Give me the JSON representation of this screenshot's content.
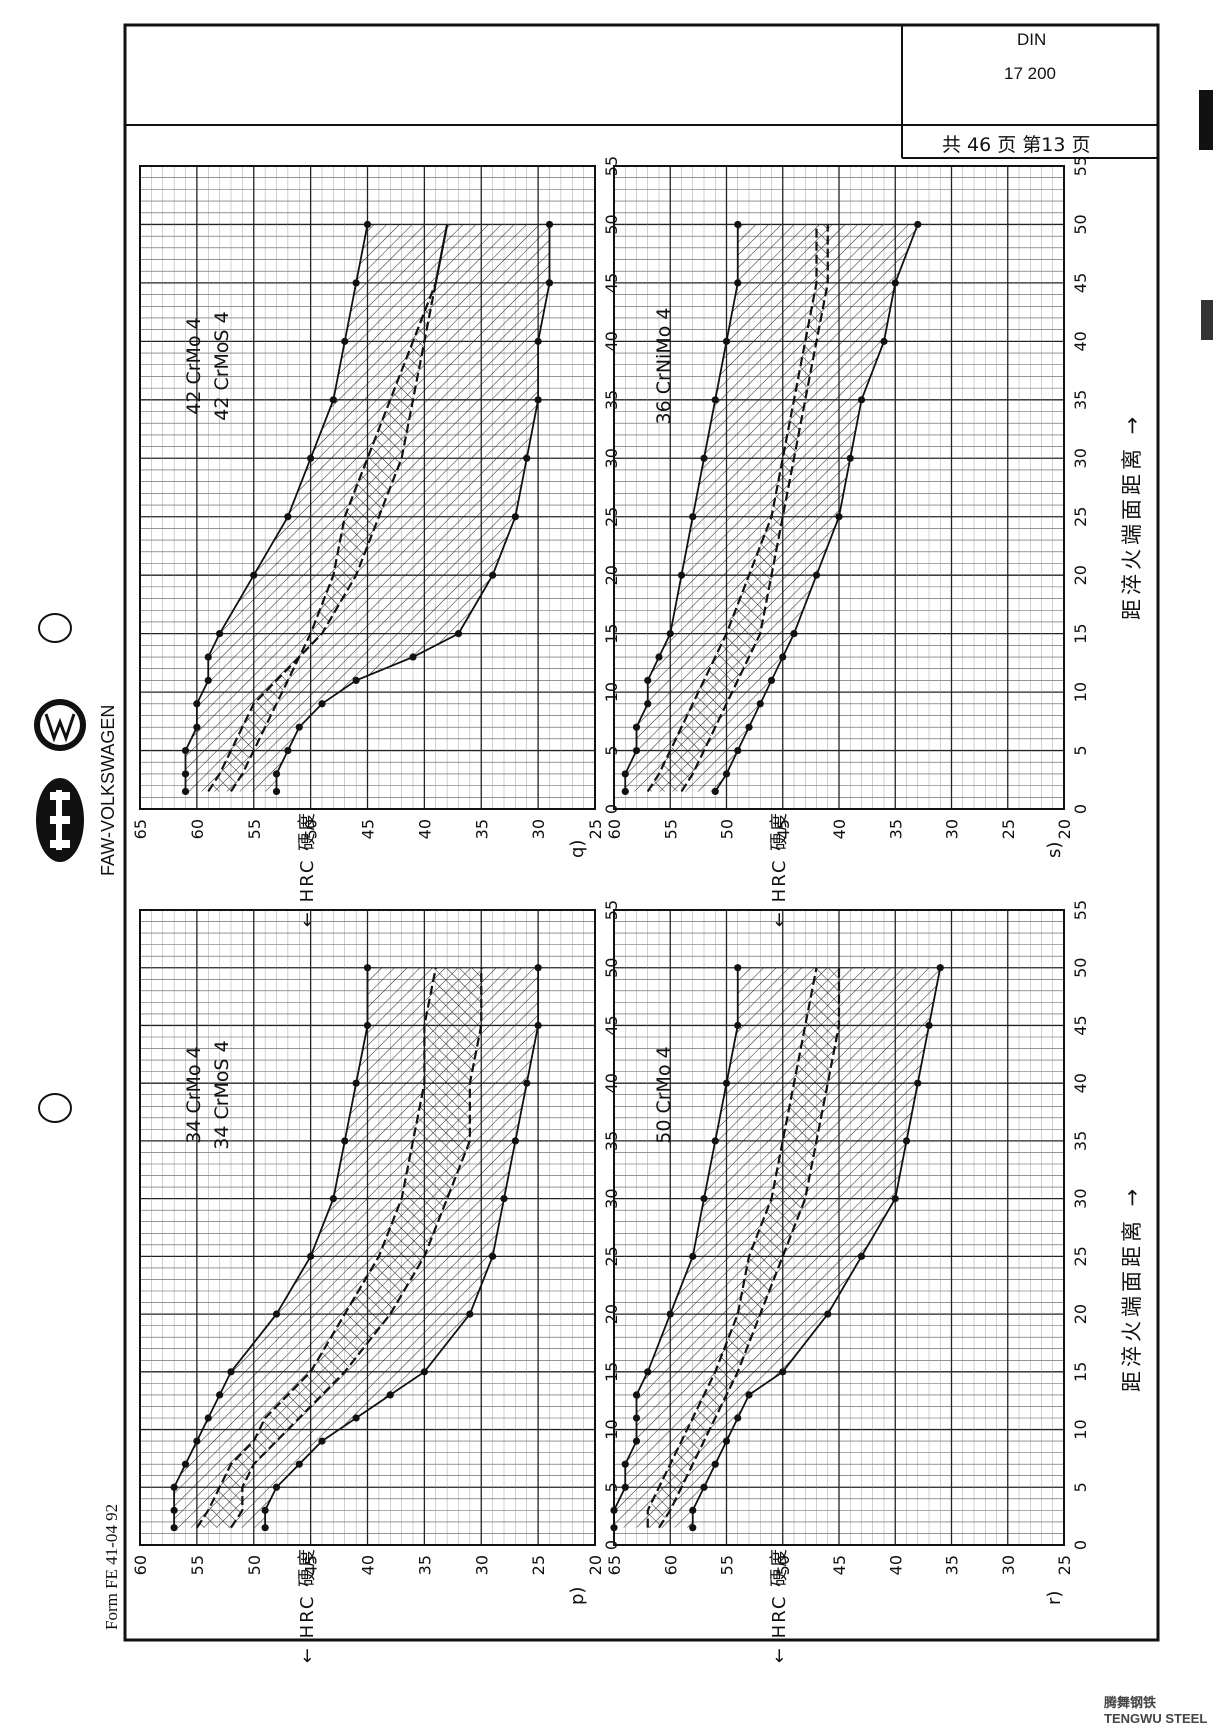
{
  "header": {
    "standard": "DIN",
    "number": "17 200",
    "page_info": "共 46  页  第13  页"
  },
  "brand": {
    "name": "FAW-VOLKSWAGEN"
  },
  "form": "Form FE 41-04 92",
  "axis_text": {
    "x_label": "距淬火端面距离 →",
    "y_label": "← HRC  硬度"
  },
  "watermark": "腾舞钢铁 TENGWU STEEL",
  "colors": {
    "ink": "#1a1a1a",
    "paper": "#ffffff",
    "grid": "#333333"
  },
  "chart_data": [
    {
      "id": "q",
      "panel_label": "q)",
      "type": "line",
      "grades": [
        "42 CrMo 4",
        "42 CrMoS 4"
      ],
      "xlabel": "距淬火端面距离",
      "ylabel": "HRC 硬度",
      "xlim": [
        0,
        55
      ],
      "ylim": [
        25,
        65
      ],
      "x_ticks": [
        0,
        5,
        10,
        15,
        20,
        25,
        30,
        35,
        40,
        45,
        50,
        55
      ],
      "y_ticks": [
        25,
        30,
        35,
        40,
        45,
        50,
        55,
        60,
        65
      ],
      "series": [
        {
          "x": [
            1.5,
            3,
            5,
            7,
            9,
            11,
            13,
            15,
            20,
            25,
            30,
            35,
            40,
            45,
            50
          ],
          "values": [
            61,
            61,
            61,
            60,
            60,
            59,
            59,
            58,
            55,
            52,
            50,
            48,
            47,
            46,
            45
          ]
        },
        {
          "x": [
            1.5,
            3,
            5,
            7,
            9,
            11,
            13,
            15,
            20,
            25,
            30,
            35,
            40,
            45,
            50
          ],
          "values": [
            59,
            58,
            57,
            56,
            55,
            53,
            51,
            49,
            46,
            44,
            42,
            41,
            40,
            39,
            38
          ]
        },
        {
          "x": [
            1.5,
            3,
            5,
            7,
            9,
            11,
            13,
            15,
            20,
            25,
            30,
            35,
            40,
            45,
            50
          ],
          "values": [
            57,
            56,
            55,
            54,
            53,
            52,
            51,
            50,
            48,
            47,
            45,
            43,
            41,
            39,
            38
          ]
        },
        {
          "x": [
            1.5,
            3,
            5,
            7,
            9,
            11,
            13,
            15,
            20,
            25,
            30,
            35,
            40,
            45,
            50
          ],
          "values": [
            53,
            53,
            52,
            51,
            49,
            46,
            41,
            37,
            34,
            32,
            31,
            30,
            30,
            29,
            29
          ]
        }
      ]
    },
    {
      "id": "s",
      "panel_label": "s)",
      "type": "line",
      "grades": [
        "36 CrNiMo 4"
      ],
      "xlabel": "距淬火端面距离",
      "ylabel": "HRC 硬度",
      "xlim": [
        0,
        55
      ],
      "ylim": [
        20,
        60
      ],
      "x_ticks": [
        0,
        5,
        10,
        15,
        20,
        25,
        30,
        35,
        40,
        45,
        50,
        55
      ],
      "y_ticks": [
        20,
        25,
        30,
        35,
        40,
        45,
        50,
        55,
        60
      ],
      "series": [
        {
          "x": [
            1.5,
            3,
            5,
            7,
            9,
            11,
            13,
            15,
            20,
            25,
            30,
            35,
            40,
            45,
            50
          ],
          "values": [
            59,
            59,
            58,
            58,
            57,
            57,
            56,
            55,
            54,
            53,
            52,
            51,
            50,
            49,
            49
          ]
        },
        {
          "x": [
            1.5,
            3,
            5,
            7,
            9,
            11,
            13,
            15,
            20,
            25,
            30,
            35,
            40,
            45,
            50
          ],
          "values": [
            57,
            56,
            55,
            54,
            53,
            52,
            51,
            50,
            48,
            46,
            45,
            44,
            43,
            42,
            42
          ]
        },
        {
          "x": [
            1.5,
            3,
            5,
            7,
            9,
            11,
            13,
            15,
            20,
            25,
            30,
            35,
            40,
            45,
            50
          ],
          "values": [
            54,
            53,
            52,
            51,
            50,
            49,
            48,
            47,
            46,
            45,
            44,
            43,
            42,
            41,
            41
          ]
        },
        {
          "x": [
            1.5,
            3,
            5,
            7,
            9,
            11,
            13,
            15,
            20,
            25,
            30,
            35,
            40,
            45,
            50
          ],
          "values": [
            51,
            50,
            49,
            48,
            47,
            46,
            45,
            44,
            42,
            40,
            39,
            38,
            36,
            35,
            33
          ]
        }
      ]
    },
    {
      "id": "p",
      "panel_label": "p)",
      "type": "line",
      "grades": [
        "34 CrMo 4",
        "34 CrMoS 4"
      ],
      "xlabel": "距淬火端面距离",
      "ylabel": "HRC 硬度",
      "xlim": [
        0,
        55
      ],
      "ylim": [
        20,
        60
      ],
      "x_ticks": [
        0,
        5,
        10,
        15,
        20,
        25,
        30,
        35,
        40,
        45,
        50,
        55
      ],
      "y_ticks": [
        20,
        25,
        30,
        35,
        40,
        45,
        50,
        55,
        60
      ],
      "series": [
        {
          "x": [
            1.5,
            3,
            5,
            7,
            9,
            11,
            13,
            15,
            20,
            25,
            30,
            35,
            40,
            45,
            50
          ],
          "values": [
            57,
            57,
            57,
            56,
            55,
            54,
            53,
            52,
            48,
            45,
            43,
            42,
            41,
            40,
            40
          ]
        },
        {
          "x": [
            1.5,
            3,
            5,
            7,
            9,
            11,
            13,
            15,
            20,
            25,
            30,
            35,
            40,
            45,
            50
          ],
          "values": [
            55,
            54,
            53,
            52,
            50,
            49,
            47,
            45,
            42,
            39,
            37,
            36,
            35,
            35,
            34
          ]
        },
        {
          "x": [
            1.5,
            3,
            5,
            7,
            9,
            11,
            13,
            15,
            20,
            25,
            30,
            35,
            40,
            45,
            50
          ],
          "values": [
            52,
            51,
            51,
            50,
            48,
            46,
            44,
            42,
            38,
            35,
            33,
            31,
            31,
            30,
            30
          ]
        },
        {
          "x": [
            1.5,
            3,
            5,
            7,
            9,
            11,
            13,
            15,
            20,
            25,
            30,
            35,
            40,
            45,
            50
          ],
          "values": [
            49,
            49,
            48,
            46,
            44,
            41,
            38,
            35,
            31,
            29,
            28,
            27,
            26,
            25,
            25
          ]
        }
      ]
    },
    {
      "id": "r",
      "panel_label": "r)",
      "type": "line",
      "grades": [
        "50 CrMo 4"
      ],
      "xlabel": "距淬火端面距离",
      "ylabel": "HRC 硬度",
      "xlim": [
        0,
        55
      ],
      "ylim": [
        25,
        65
      ],
      "x_ticks": [
        0,
        5,
        10,
        15,
        20,
        25,
        30,
        35,
        40,
        45,
        50,
        55
      ],
      "y_ticks": [
        25,
        30,
        35,
        40,
        45,
        50,
        55,
        60,
        65
      ],
      "series": [
        {
          "x": [
            1.5,
            3,
            5,
            7,
            9,
            11,
            13,
            15,
            20,
            25,
            30,
            35,
            40,
            45,
            50
          ],
          "values": [
            65,
            65,
            64,
            64,
            63,
            63,
            63,
            62,
            60,
            58,
            57,
            56,
            55,
            54,
            54
          ]
        },
        {
          "x": [
            1.5,
            3,
            5,
            7,
            9,
            11,
            13,
            15,
            20,
            25,
            30,
            35,
            40,
            45,
            50
          ],
          "values": [
            62,
            62,
            61,
            60,
            59,
            58,
            57,
            56,
            54,
            53,
            51,
            50,
            49,
            48,
            47
          ]
        },
        {
          "x": [
            1.5,
            3,
            5,
            7,
            9,
            11,
            13,
            15,
            20,
            25,
            30,
            35,
            40,
            45,
            50
          ],
          "values": [
            61,
            60,
            59,
            58,
            57,
            56,
            55,
            54,
            52,
            50,
            48,
            47,
            46,
            45,
            45
          ]
        },
        {
          "x": [
            1.5,
            3,
            5,
            7,
            9,
            11,
            13,
            15,
            20,
            25,
            30,
            35,
            40,
            45,
            50
          ],
          "values": [
            58,
            58,
            57,
            56,
            55,
            54,
            53,
            50,
            46,
            43,
            40,
            39,
            38,
            37,
            36
          ]
        }
      ]
    }
  ]
}
